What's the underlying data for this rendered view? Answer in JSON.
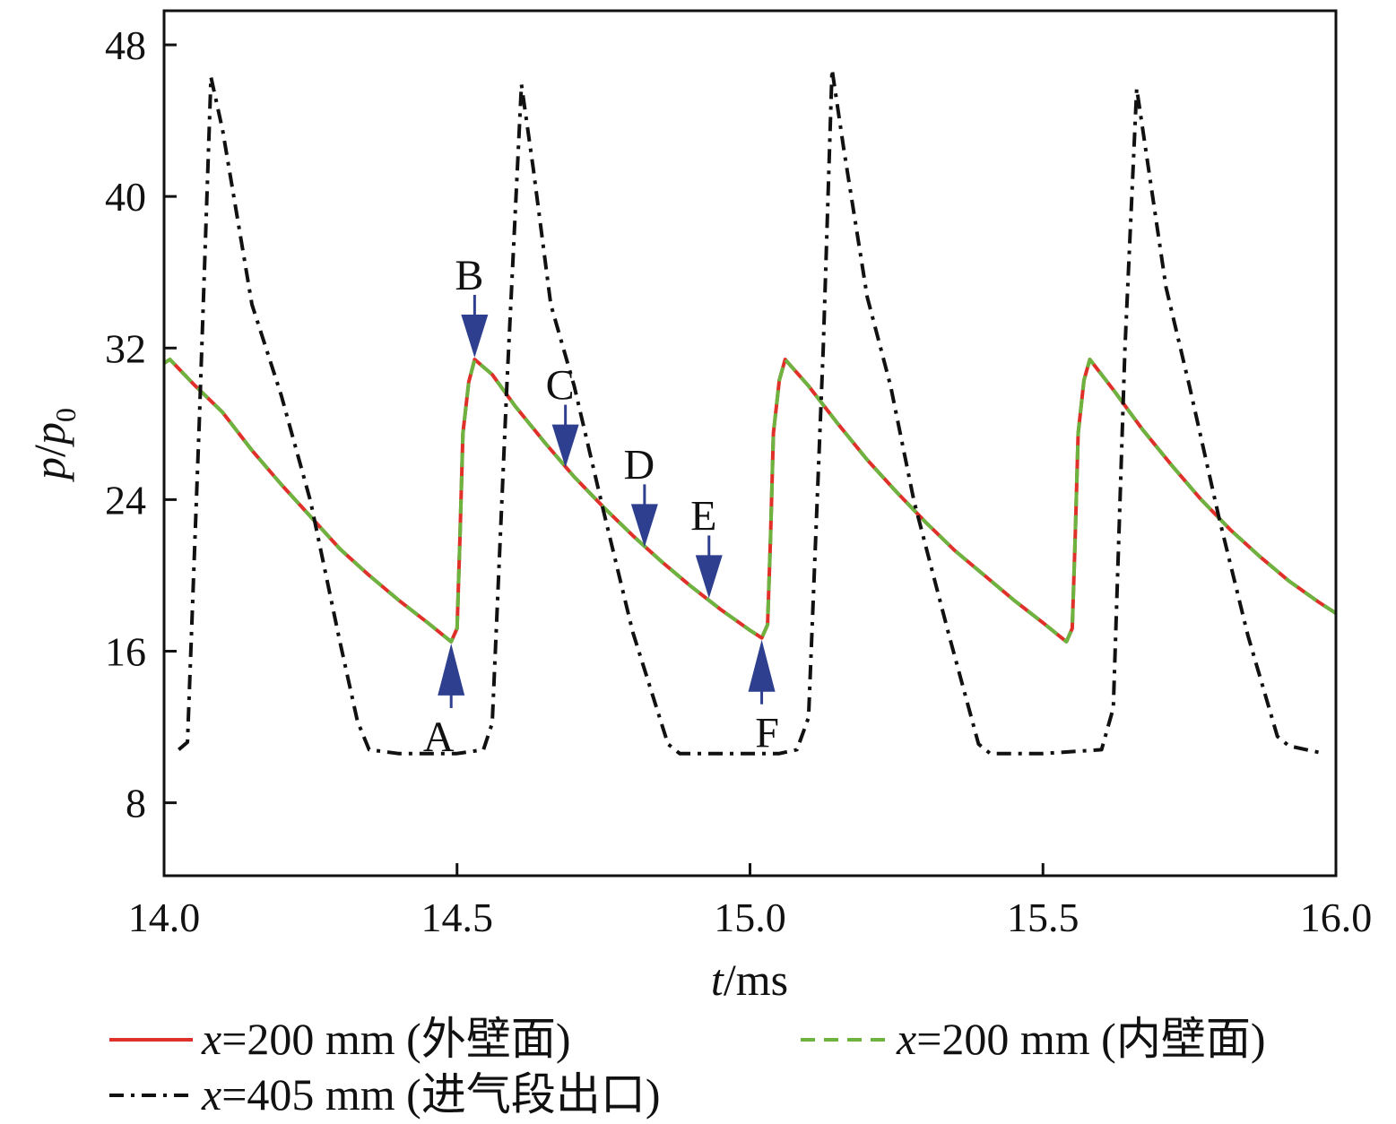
{
  "chart_data": {
    "type": "line",
    "title": "",
    "xlabel": {
      "var": "t",
      "unit": "/ms"
    },
    "ylabel": {
      "var": "p",
      "slash": "/",
      "var2": "p",
      "sub": "0"
    },
    "xlim": [
      14.0,
      16.0
    ],
    "ylim": [
      4.15,
      49.8
    ],
    "xticks": [
      14.0,
      14.5,
      15.0,
      15.5,
      16.0
    ],
    "xtick_labels": [
      "14.0",
      "14.5",
      "15.0",
      "15.5",
      "16.0"
    ],
    "yticks": [
      8,
      16,
      24,
      32,
      40,
      48
    ],
    "ytick_labels": [
      "8",
      "16",
      "24",
      "32",
      "40",
      "48"
    ],
    "grid": false,
    "legend_placement": "bottom",
    "series": [
      {
        "name": "x=200 mm (外壁面)",
        "legend_var": "x",
        "legend_rest": "=200 mm (外壁面)",
        "color": "#e0302a",
        "style": "solid",
        "x": [
          14.0,
          14.01,
          14.05,
          14.1,
          14.15,
          14.2,
          14.25,
          14.3,
          14.35,
          14.4,
          14.45,
          14.49,
          14.5,
          14.505,
          14.51,
          14.52,
          14.53,
          14.56,
          14.6,
          14.65,
          14.7,
          14.75,
          14.8,
          14.85,
          14.9,
          14.95,
          15.0,
          15.02,
          15.03,
          15.035,
          15.04,
          15.05,
          15.06,
          15.1,
          15.15,
          15.2,
          15.25,
          15.3,
          15.35,
          15.4,
          15.45,
          15.5,
          15.54,
          15.55,
          15.555,
          15.56,
          15.57,
          15.58,
          15.62,
          15.67,
          15.72,
          15.77,
          15.82,
          15.87,
          15.92,
          15.97,
          16.0
        ],
        "y": [
          31.2,
          31.4,
          30.1,
          28.6,
          26.6,
          24.8,
          23.1,
          21.4,
          20.0,
          18.7,
          17.5,
          16.5,
          17.2,
          22,
          27.5,
          30.2,
          31.4,
          30.6,
          28.9,
          27.0,
          25.2,
          23.6,
          22.1,
          20.7,
          19.4,
          18.2,
          17.1,
          16.7,
          17.4,
          22,
          27.5,
          30.3,
          31.4,
          30.0,
          28.0,
          26.1,
          24.4,
          22.8,
          21.3,
          20.0,
          18.7,
          17.5,
          16.5,
          17.2,
          22,
          27.5,
          30.3,
          31.4,
          29.8,
          27.7,
          25.8,
          24.0,
          22.4,
          21.0,
          19.7,
          18.6,
          18.0
        ]
      },
      {
        "name": "x=200 mm (内壁面)",
        "legend_var": "x",
        "legend_rest": "=200 mm (内壁面)",
        "color": "#6db33f",
        "style": "dashed",
        "x": [
          14.0,
          14.01,
          14.05,
          14.1,
          14.15,
          14.2,
          14.25,
          14.3,
          14.35,
          14.4,
          14.45,
          14.49,
          14.5,
          14.505,
          14.51,
          14.52,
          14.53,
          14.56,
          14.6,
          14.65,
          14.7,
          14.75,
          14.8,
          14.85,
          14.9,
          14.95,
          15.0,
          15.02,
          15.03,
          15.035,
          15.04,
          15.05,
          15.06,
          15.1,
          15.15,
          15.2,
          15.25,
          15.3,
          15.35,
          15.4,
          15.45,
          15.5,
          15.54,
          15.55,
          15.555,
          15.56,
          15.57,
          15.58,
          15.62,
          15.67,
          15.72,
          15.77,
          15.82,
          15.87,
          15.92,
          15.97,
          16.0
        ],
        "y": [
          31.2,
          31.4,
          30.1,
          28.6,
          26.6,
          24.8,
          23.1,
          21.4,
          20.0,
          18.7,
          17.5,
          16.5,
          17.2,
          22,
          27.5,
          30.2,
          31.4,
          30.6,
          28.9,
          27.0,
          25.2,
          23.6,
          22.1,
          20.7,
          19.4,
          18.2,
          17.1,
          16.7,
          17.4,
          22,
          27.5,
          30.3,
          31.4,
          30.0,
          28.0,
          26.1,
          24.4,
          22.8,
          21.3,
          20.0,
          18.7,
          17.5,
          16.5,
          17.2,
          22,
          27.5,
          30.3,
          31.4,
          29.8,
          27.7,
          25.8,
          24.0,
          22.4,
          21.0,
          19.7,
          18.6,
          18.0
        ]
      },
      {
        "name": "x=405 mm (进气段出口)",
        "legend_var": "x",
        "legend_rest": "=405 mm (进气段出口)",
        "color": "#111111",
        "style": "dashdot",
        "x": [
          14.025,
          14.04,
          14.06,
          14.08,
          14.1,
          14.15,
          14.2,
          14.25,
          14.3,
          14.33,
          14.35,
          14.4,
          14.5,
          14.545,
          14.56,
          14.585,
          14.61,
          14.63,
          14.66,
          14.7,
          14.75,
          14.8,
          14.86,
          14.88,
          14.95,
          15.05,
          15.08,
          15.1,
          15.125,
          15.14,
          15.16,
          15.2,
          15.24,
          15.28,
          15.34,
          15.39,
          15.41,
          15.5,
          15.6,
          15.62,
          15.64,
          15.66,
          15.68,
          15.71,
          15.75,
          15.8,
          15.85,
          15.9,
          15.92,
          15.98
        ],
        "y": [
          10.8,
          11.2,
          28,
          46.3,
          43.5,
          34.3,
          29.5,
          23.9,
          16.5,
          12.3,
          10.8,
          10.6,
          10.6,
          10.8,
          12.2,
          30,
          45.9,
          41.5,
          34.3,
          30.0,
          23.4,
          17.0,
          11.1,
          10.6,
          10.6,
          10.6,
          10.8,
          12.5,
          32,
          46.7,
          42.5,
          34.7,
          30.0,
          23.9,
          16.8,
          11.1,
          10.6,
          10.6,
          10.8,
          13,
          32,
          45.7,
          41.5,
          35.2,
          30.0,
          23.1,
          16.8,
          11.5,
          11.0,
          10.6
        ]
      }
    ],
    "annotations": [
      {
        "label": "A",
        "x": 14.49,
        "y": 16.5,
        "direction": "up"
      },
      {
        "label": "B",
        "x": 14.53,
        "y": 31.4,
        "direction": "down"
      },
      {
        "label": "C",
        "x": 14.685,
        "y": 25.6,
        "direction": "down"
      },
      {
        "label": "D",
        "x": 14.82,
        "y": 21.4,
        "direction": "down"
      },
      {
        "label": "E",
        "x": 14.93,
        "y": 18.7,
        "direction": "down"
      },
      {
        "label": "F",
        "x": 15.02,
        "y": 16.7,
        "direction": "up"
      }
    ],
    "arrow_color": "#2e3f8f"
  }
}
